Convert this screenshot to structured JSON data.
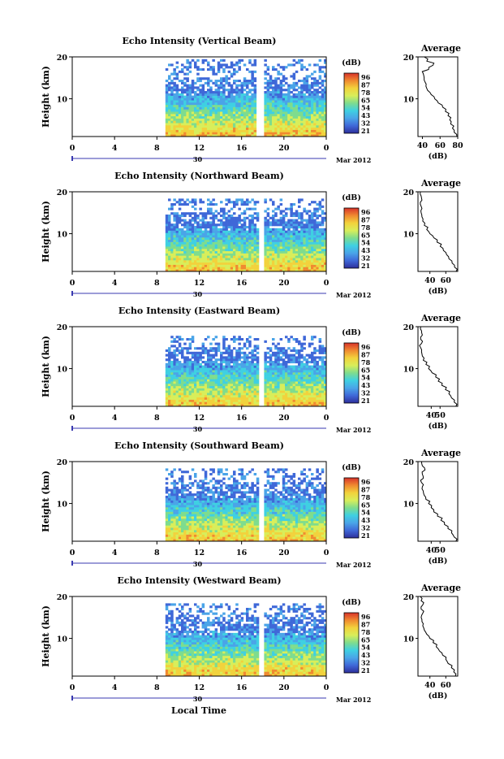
{
  "figure": {
    "bottom_xlabel": "Local Time",
    "date_tag": "Mar 2012",
    "date_axis_label": "30"
  },
  "colors": {
    "blue": "#3c50c8",
    "light_blue": "#4ea4e6",
    "cyan": "#3fd2e6",
    "green": "#6edc9a",
    "yellow": "#f0e050",
    "orange": "#f2a040",
    "red": "#e05a32",
    "date_axis": "#3a3ab0"
  },
  "colorbar": {
    "label": "(dB)",
    "ticks": [
      "96",
      "87",
      "78",
      "65",
      "54",
      "43",
      "32",
      "21"
    ],
    "stops": [
      "#d8332a",
      "#f08a30",
      "#f2d23c",
      "#d8ee5a",
      "#7edc8e",
      "#3fd0e2",
      "#4aa4e8",
      "#3f68d8",
      "#2d2f9a"
    ]
  },
  "chart_data": [
    {
      "type": "heatmap",
      "title": "Echo Intensity (Vertical Beam)",
      "ylabel": "Height (km)",
      "xlim": [
        0,
        24
      ],
      "ylim": [
        1,
        20
      ],
      "xticks": [
        "0",
        "4",
        "8",
        "12",
        "16",
        "20",
        "0"
      ],
      "yticks": [
        "20",
        "10"
      ],
      "data_start_hour": 8.8,
      "data_gap_hours": [
        17.3,
        18.0
      ],
      "max_height_km": 19.5,
      "profile": {
        "title": "Average",
        "xlabel": "(dB)",
        "xlim": [
          35,
          80
        ],
        "xticks": [
          "40",
          "60",
          "80"
        ],
        "height_km": [
          1,
          2,
          3,
          4,
          5,
          6,
          7,
          8,
          9,
          10,
          11,
          12,
          13,
          14,
          15,
          16,
          17,
          18,
          19,
          20
        ],
        "db": [
          79,
          76,
          74,
          72,
          71,
          69,
          66,
          63,
          58,
          54,
          50,
          46,
          44,
          43,
          42,
          41,
          47,
          52,
          45,
          42
        ]
      }
    },
    {
      "type": "heatmap",
      "title": "Echo Intensity (Northward Beam)",
      "ylabel": "Height (km)",
      "xlim": [
        0,
        24
      ],
      "ylim": [
        1,
        20
      ],
      "xticks": [
        "0",
        "4",
        "8",
        "12",
        "16",
        "20",
        "0"
      ],
      "yticks": [
        "20",
        "10"
      ],
      "data_start_hour": 8.8,
      "data_gap_hours": [
        17.5,
        18.0
      ],
      "max_height_km": 18.6,
      "profile": {
        "title": "Average",
        "xlabel": "(dB)",
        "xlim": [
          25,
          75
        ],
        "xticks": [
          "40",
          "60"
        ],
        "height_km": [
          1,
          2,
          3,
          4,
          5,
          6,
          7,
          8,
          9,
          10,
          11,
          12,
          13,
          14,
          15,
          16,
          17,
          18,
          19,
          20
        ],
        "db": [
          73,
          71,
          68,
          64,
          61,
          57,
          53,
          49,
          45,
          40,
          36,
          33,
          31,
          30,
          29,
          30,
          28,
          30,
          29,
          28
        ]
      }
    },
    {
      "type": "heatmap",
      "title": "Echo Intensity (Eastward Beam)",
      "ylabel": "Height (km)",
      "xlim": [
        0,
        24
      ],
      "ylim": [
        1,
        20
      ],
      "xticks": [
        "0",
        "4",
        "8",
        "12",
        "16",
        "20",
        "0"
      ],
      "yticks": [
        "20",
        "10"
      ],
      "data_start_hour": 8.8,
      "data_gap_hours": [
        17.6,
        18.1
      ],
      "max_height_km": 18.0,
      "profile": {
        "title": "Average",
        "xlabel": "(dB)",
        "xlim": [
          25,
          70
        ],
        "xticks": [
          "40",
          "50"
        ],
        "height_km": [
          1,
          2,
          3,
          4,
          5,
          6,
          7,
          8,
          9,
          10,
          11,
          12,
          13,
          14,
          15,
          16,
          17,
          18,
          19,
          20
        ],
        "db": [
          68,
          66,
          63,
          60,
          56,
          52,
          48,
          45,
          41,
          37,
          34,
          31,
          30,
          29,
          28,
          29,
          28,
          30,
          29,
          28
        ]
      }
    },
    {
      "type": "heatmap",
      "title": "Echo Intensity (Southward Beam)",
      "ylabel": "Height (km)",
      "xlim": [
        0,
        24
      ],
      "ylim": [
        1,
        20
      ],
      "xticks": [
        "0",
        "4",
        "8",
        "12",
        "16",
        "20",
        "0"
      ],
      "yticks": [
        "20",
        "10"
      ],
      "data_start_hour": 8.8,
      "data_gap_hours": [
        17.4,
        17.9
      ],
      "max_height_km": 18.8,
      "profile": {
        "title": "Average",
        "xlabel": "(dB)",
        "xlim": [
          25,
          70
        ],
        "xticks": [
          "40",
          "50"
        ],
        "height_km": [
          1,
          2,
          3,
          4,
          5,
          6,
          7,
          8,
          9,
          10,
          11,
          12,
          13,
          14,
          15,
          16,
          17,
          18,
          19,
          20
        ],
        "db": [
          68,
          66,
          63,
          59,
          55,
          51,
          47,
          43,
          40,
          37,
          34,
          32,
          31,
          30,
          29,
          31,
          30,
          33,
          30,
          29
        ]
      }
    },
    {
      "type": "heatmap",
      "title": "Echo Intensity (Westward Beam)",
      "ylabel": "Height (km)",
      "xlim": [
        0,
        24
      ],
      "ylim": [
        1,
        20
      ],
      "xticks": [
        "0",
        "4",
        "8",
        "12",
        "16",
        "20",
        "0"
      ],
      "yticks": [
        "20",
        "10"
      ],
      "data_start_hour": 8.8,
      "data_gap_hours": [
        17.4,
        17.9
      ],
      "max_height_km": 18.9,
      "profile": {
        "title": "Average",
        "xlabel": "(dB)",
        "xlim": [
          25,
          75
        ],
        "xticks": [
          "40",
          "60"
        ],
        "height_km": [
          1,
          2,
          3,
          4,
          5,
          6,
          7,
          8,
          9,
          10,
          11,
          12,
          13,
          14,
          15,
          16,
          17,
          18,
          19,
          20
        ],
        "db": [
          72,
          70,
          67,
          63,
          60,
          56,
          52,
          48,
          44,
          40,
          36,
          33,
          31,
          30,
          29,
          31,
          29,
          31,
          29,
          28
        ]
      }
    }
  ]
}
